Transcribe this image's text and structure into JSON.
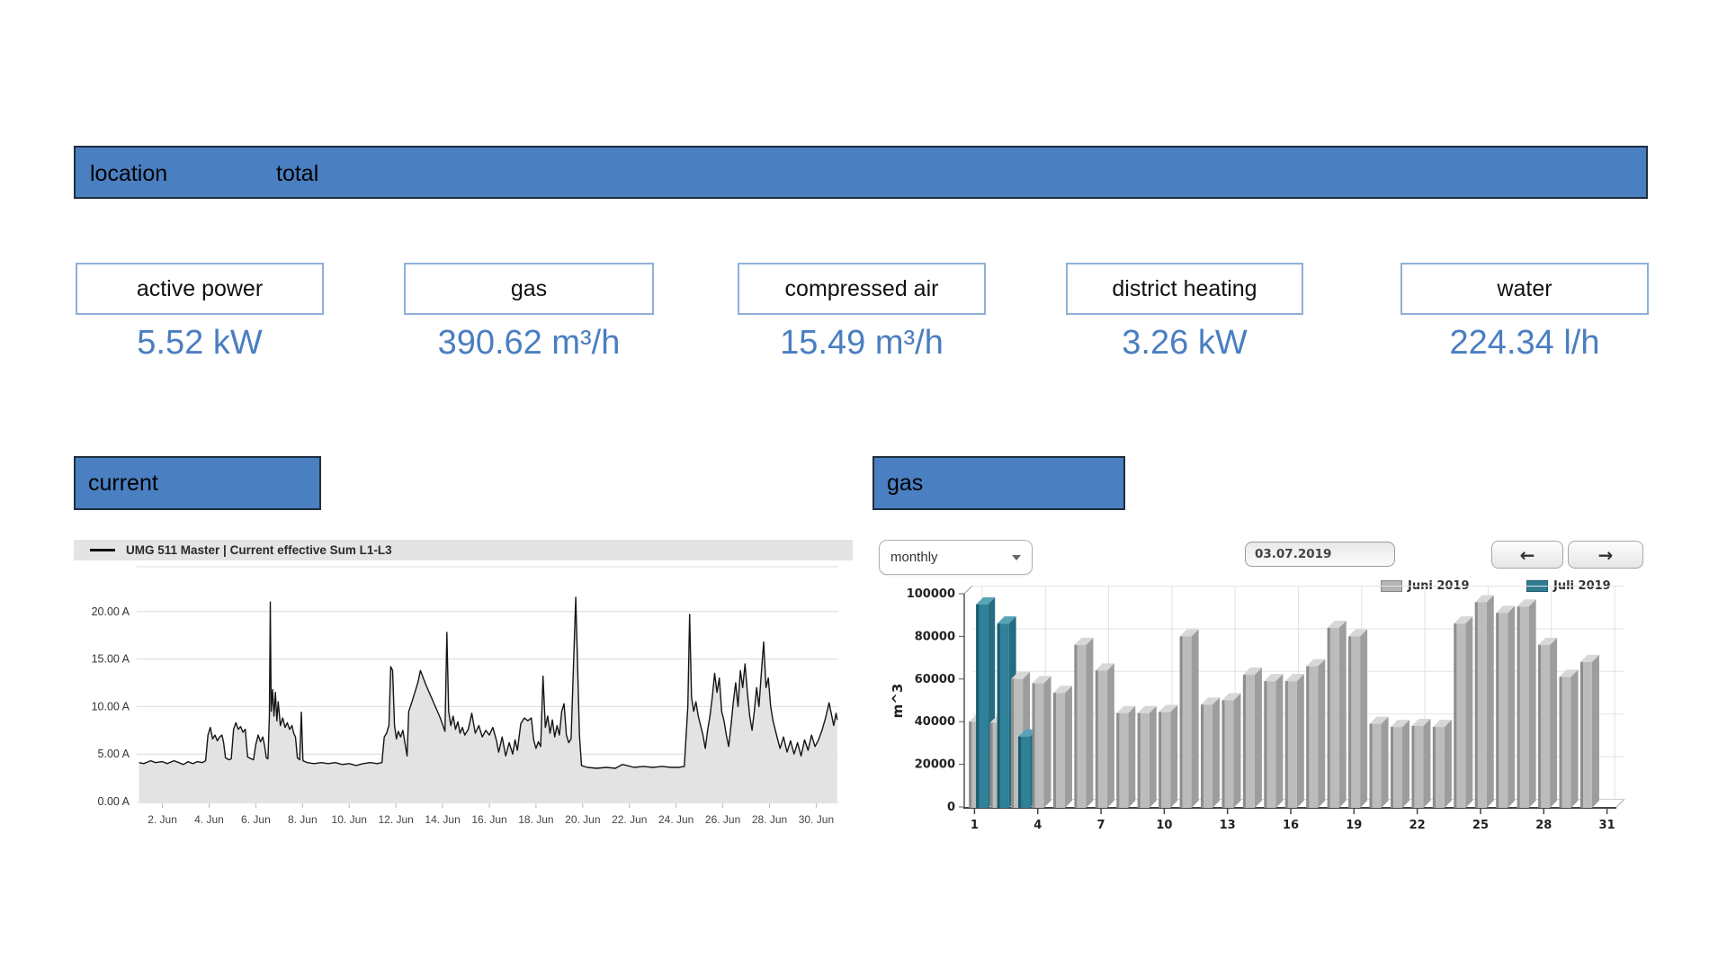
{
  "header_bar": {
    "location_label": "location",
    "total_label": "total"
  },
  "metric_cards": [
    {
      "label": "active power",
      "value": "5.52 kW"
    },
    {
      "label": "gas",
      "value": "390.62 m³/h"
    },
    {
      "label": "compressed air",
      "value": "15.49 m³/h"
    },
    {
      "label": "district heating",
      "value": "3.26 kW"
    },
    {
      "label": "water",
      "value": "224.34 l/h"
    }
  ],
  "current_section": {
    "title": "current",
    "legend_label": "UMG 511 Master | Current effective Sum L1-L3"
  },
  "gas_section": {
    "title": "gas",
    "interval_select": {
      "value": "monthly"
    },
    "date_field": {
      "value": "03.07.2019"
    },
    "prev_button": "←",
    "next_button": "→",
    "legend": [
      {
        "label": "Juni 2019",
        "color": "#b5b5b5"
      },
      {
        "label": "Juli 2019",
        "color": "#2e7d92"
      }
    ]
  },
  "chart_data": [
    {
      "type": "area",
      "title": "current",
      "xlabel": "",
      "ylabel": "",
      "xlim": [
        1,
        31
      ],
      "ylim": [
        0,
        24.6
      ],
      "grid": true,
      "legend_position": "top",
      "ytick_labels": [
        "0.00 A",
        "5.00 A",
        "10.00 A",
        "15.00 A",
        "20.00 A"
      ],
      "yticks": [
        0,
        5,
        10,
        15,
        20
      ],
      "xticks": [
        2,
        4,
        6,
        8,
        10,
        12,
        14,
        16,
        18,
        20,
        22,
        24,
        26,
        28,
        30
      ],
      "xtick_suffix": ". Jun",
      "series": [
        {
          "name": "UMG 511 Master | Current effective Sum L1-L3",
          "color": "#151515",
          "fill": "#e3e3e3",
          "points": [
            [
              1.0,
              4.1
            ],
            [
              1.2,
              4.0
            ],
            [
              1.5,
              4.3
            ],
            [
              1.7,
              4.1
            ],
            [
              2.0,
              4.2
            ],
            [
              2.2,
              4.0
            ],
            [
              2.5,
              4.3
            ],
            [
              2.7,
              4.1
            ],
            [
              2.9,
              3.9
            ],
            [
              3.1,
              4.2
            ],
            [
              3.3,
              4.0
            ],
            [
              3.5,
              4.2
            ],
            [
              3.7,
              4.1
            ],
            [
              3.85,
              4.3
            ],
            [
              3.95,
              7.0
            ],
            [
              4.05,
              7.8
            ],
            [
              4.15,
              6.6
            ],
            [
              4.25,
              7.0
            ],
            [
              4.35,
              6.4
            ],
            [
              4.45,
              6.8
            ],
            [
              4.55,
              7.0
            ],
            [
              4.62,
              6.2
            ],
            [
              4.7,
              4.6
            ],
            [
              4.85,
              4.4
            ],
            [
              4.95,
              4.5
            ],
            [
              5.05,
              7.6
            ],
            [
              5.15,
              8.3
            ],
            [
              5.25,
              7.6
            ],
            [
              5.35,
              7.9
            ],
            [
              5.45,
              7.3
            ],
            [
              5.55,
              7.6
            ],
            [
              5.65,
              4.7
            ],
            [
              5.8,
              4.5
            ],
            [
              5.9,
              4.4
            ],
            [
              6.0,
              6.0
            ],
            [
              6.1,
              7.0
            ],
            [
              6.2,
              6.3
            ],
            [
              6.3,
              6.8
            ],
            [
              6.38,
              5.8
            ],
            [
              6.45,
              4.6
            ],
            [
              6.52,
              4.5
            ],
            [
              6.58,
              9.0
            ],
            [
              6.62,
              21.0
            ],
            [
              6.66,
              9.5
            ],
            [
              6.72,
              11.8
            ],
            [
              6.78,
              9.0
            ],
            [
              6.84,
              11.5
            ],
            [
              6.9,
              8.5
            ],
            [
              6.96,
              10.5
            ],
            [
              7.05,
              8.0
            ],
            [
              7.15,
              8.8
            ],
            [
              7.25,
              7.8
            ],
            [
              7.35,
              8.3
            ],
            [
              7.45,
              7.6
            ],
            [
              7.55,
              8.0
            ],
            [
              7.62,
              7.2
            ],
            [
              7.7,
              6.8
            ],
            [
              7.78,
              4.6
            ],
            [
              7.88,
              4.4
            ],
            [
              7.95,
              9.4
            ],
            [
              8.02,
              4.3
            ],
            [
              8.2,
              4.1
            ],
            [
              8.5,
              4.0
            ],
            [
              8.8,
              4.1
            ],
            [
              9.1,
              4.0
            ],
            [
              9.4,
              4.1
            ],
            [
              9.7,
              3.9
            ],
            [
              10.0,
              4.0
            ],
            [
              10.3,
              3.8
            ],
            [
              10.6,
              4.0
            ],
            [
              10.9,
              4.1
            ],
            [
              11.2,
              4.0
            ],
            [
              11.4,
              4.1
            ],
            [
              11.5,
              6.8
            ],
            [
              11.6,
              7.2
            ],
            [
              11.7,
              8.0
            ],
            [
              11.78,
              14.2
            ],
            [
              11.86,
              13.8
            ],
            [
              11.94,
              8.0
            ],
            [
              12.02,
              6.6
            ],
            [
              12.1,
              7.4
            ],
            [
              12.2,
              6.8
            ],
            [
              12.3,
              7.5
            ],
            [
              12.4,
              6.0
            ],
            [
              12.48,
              4.8
            ],
            [
              12.55,
              9.5
            ],
            [
              12.65,
              10.2
            ],
            [
              12.75,
              11.0
            ],
            [
              12.85,
              11.8
            ],
            [
              12.95,
              12.6
            ],
            [
              13.05,
              13.8
            ],
            [
              13.3,
              12.2
            ],
            [
              13.6,
              10.5
            ],
            [
              13.9,
              8.8
            ],
            [
              14.1,
              7.4
            ],
            [
              14.18,
              17.8
            ],
            [
              14.26,
              9.5
            ],
            [
              14.35,
              8.0
            ],
            [
              14.45,
              9.0
            ],
            [
              14.55,
              7.6
            ],
            [
              14.65,
              8.4
            ],
            [
              14.75,
              7.2
            ],
            [
              14.85,
              7.8
            ],
            [
              14.95,
              7.0
            ],
            [
              15.1,
              7.6
            ],
            [
              15.25,
              9.3
            ],
            [
              15.4,
              7.2
            ],
            [
              15.55,
              8.0
            ],
            [
              15.7,
              6.8
            ],
            [
              15.85,
              7.5
            ],
            [
              16.0,
              7.0
            ],
            [
              16.15,
              7.8
            ],
            [
              16.3,
              6.5
            ],
            [
              16.4,
              5.2
            ],
            [
              16.55,
              6.8
            ],
            [
              16.7,
              4.8
            ],
            [
              16.85,
              6.2
            ],
            [
              17.0,
              5.0
            ],
            [
              17.1,
              6.5
            ],
            [
              17.2,
              5.4
            ],
            [
              17.35,
              8.2
            ],
            [
              17.5,
              8.8
            ],
            [
              17.65,
              8.5
            ],
            [
              17.8,
              8.8
            ],
            [
              17.9,
              6.5
            ],
            [
              18.0,
              5.6
            ],
            [
              18.1,
              6.3
            ],
            [
              18.2,
              5.8
            ],
            [
              18.3,
              13.2
            ],
            [
              18.4,
              7.8
            ],
            [
              18.5,
              9.0
            ],
            [
              18.6,
              7.2
            ],
            [
              18.7,
              8.6
            ],
            [
              18.8,
              6.8
            ],
            [
              18.9,
              8.0
            ],
            [
              19.0,
              7.0
            ],
            [
              19.1,
              9.5
            ],
            [
              19.2,
              10.3
            ],
            [
              19.3,
              7.0
            ],
            [
              19.4,
              6.2
            ],
            [
              19.5,
              6.6
            ],
            [
              19.62,
              15.5
            ],
            [
              19.7,
              21.5
            ],
            [
              19.78,
              14.5
            ],
            [
              19.86,
              7.0
            ],
            [
              19.95,
              3.8
            ],
            [
              20.2,
              3.6
            ],
            [
              20.6,
              3.5
            ],
            [
              21.0,
              3.6
            ],
            [
              21.4,
              3.5
            ],
            [
              21.7,
              3.9
            ],
            [
              21.9,
              3.8
            ],
            [
              22.2,
              3.6
            ],
            [
              22.6,
              3.7
            ],
            [
              23.0,
              3.6
            ],
            [
              23.4,
              3.7
            ],
            [
              23.8,
              3.6
            ],
            [
              24.1,
              3.6
            ],
            [
              24.35,
              3.7
            ],
            [
              24.5,
              10.0
            ],
            [
              24.58,
              19.7
            ],
            [
              24.66,
              11.0
            ],
            [
              24.75,
              9.5
            ],
            [
              24.85,
              10.5
            ],
            [
              24.95,
              9.0
            ],
            [
              25.05,
              8.0
            ],
            [
              25.15,
              7.0
            ],
            [
              25.25,
              5.6
            ],
            [
              25.35,
              7.5
            ],
            [
              25.45,
              9.0
            ],
            [
              25.55,
              11.0
            ],
            [
              25.65,
              13.5
            ],
            [
              25.75,
              11.5
            ],
            [
              25.85,
              13.0
            ],
            [
              25.95,
              9.5
            ],
            [
              26.05,
              8.5
            ],
            [
              26.15,
              7.0
            ],
            [
              26.25,
              5.8
            ],
            [
              26.35,
              8.0
            ],
            [
              26.45,
              10.5
            ],
            [
              26.55,
              12.5
            ],
            [
              26.65,
              10.0
            ],
            [
              26.75,
              13.8
            ],
            [
              26.85,
              12.0
            ],
            [
              26.95,
              14.5
            ],
            [
              27.05,
              11.5
            ],
            [
              27.15,
              9.0
            ],
            [
              27.25,
              7.5
            ],
            [
              27.35,
              9.5
            ],
            [
              27.45,
              12.0
            ],
            [
              27.55,
              10.0
            ],
            [
              27.65,
              13.5
            ],
            [
              27.75,
              16.8
            ],
            [
              27.85,
              12.0
            ],
            [
              27.95,
              13.0
            ],
            [
              28.05,
              10.0
            ],
            [
              28.15,
              8.5
            ],
            [
              28.3,
              7.0
            ],
            [
              28.45,
              5.6
            ],
            [
              28.6,
              6.8
            ],
            [
              28.75,
              5.2
            ],
            [
              28.9,
              6.4
            ],
            [
              29.05,
              5.0
            ],
            [
              29.2,
              6.2
            ],
            [
              29.35,
              4.8
            ],
            [
              29.5,
              6.5
            ],
            [
              29.65,
              5.4
            ],
            [
              29.8,
              7.0
            ],
            [
              29.95,
              5.8
            ],
            [
              30.1,
              6.5
            ],
            [
              30.25,
              7.5
            ],
            [
              30.4,
              8.8
            ],
            [
              30.55,
              10.4
            ],
            [
              30.65,
              9.2
            ],
            [
              30.75,
              8.0
            ],
            [
              30.85,
              9.3
            ],
            [
              30.9,
              8.6
            ]
          ]
        }
      ]
    },
    {
      "type": "bar",
      "title": "gas",
      "ylabel": "m^3",
      "ylim": [
        0,
        100000
      ],
      "yticks": [
        0,
        20000,
        40000,
        60000,
        80000,
        100000
      ],
      "xticks": [
        1,
        4,
        7,
        10,
        13,
        16,
        19,
        22,
        25,
        28,
        31
      ],
      "style": "3d",
      "categories": [
        1,
        2,
        3,
        4,
        5,
        6,
        7,
        8,
        9,
        10,
        11,
        12,
        13,
        14,
        15,
        16,
        17,
        18,
        19,
        20,
        21,
        22,
        23,
        24,
        25,
        26,
        27,
        28,
        29,
        30,
        31
      ],
      "series": [
        {
          "name": "Juni 2019",
          "color": "#b5b5b5",
          "values": [
            40000,
            39500,
            60000,
            58000,
            53500,
            76000,
            64000,
            44000,
            44000,
            44500,
            80000,
            48000,
            50000,
            62000,
            59000,
            59000,
            66000,
            84000,
            80000,
            39000,
            37500,
            38000,
            37500,
            86000,
            96000,
            91000,
            94000,
            76000,
            61000,
            68000,
            null
          ]
        },
        {
          "name": "Juli 2019",
          "color": "#2e7d92",
          "values": [
            95000,
            86000,
            33000,
            null,
            null,
            null,
            null,
            null,
            null,
            null,
            null,
            null,
            null,
            null,
            null,
            null,
            null,
            null,
            null,
            null,
            null,
            null,
            null,
            null,
            null,
            null,
            null,
            null,
            null,
            null,
            null
          ]
        }
      ]
    }
  ]
}
